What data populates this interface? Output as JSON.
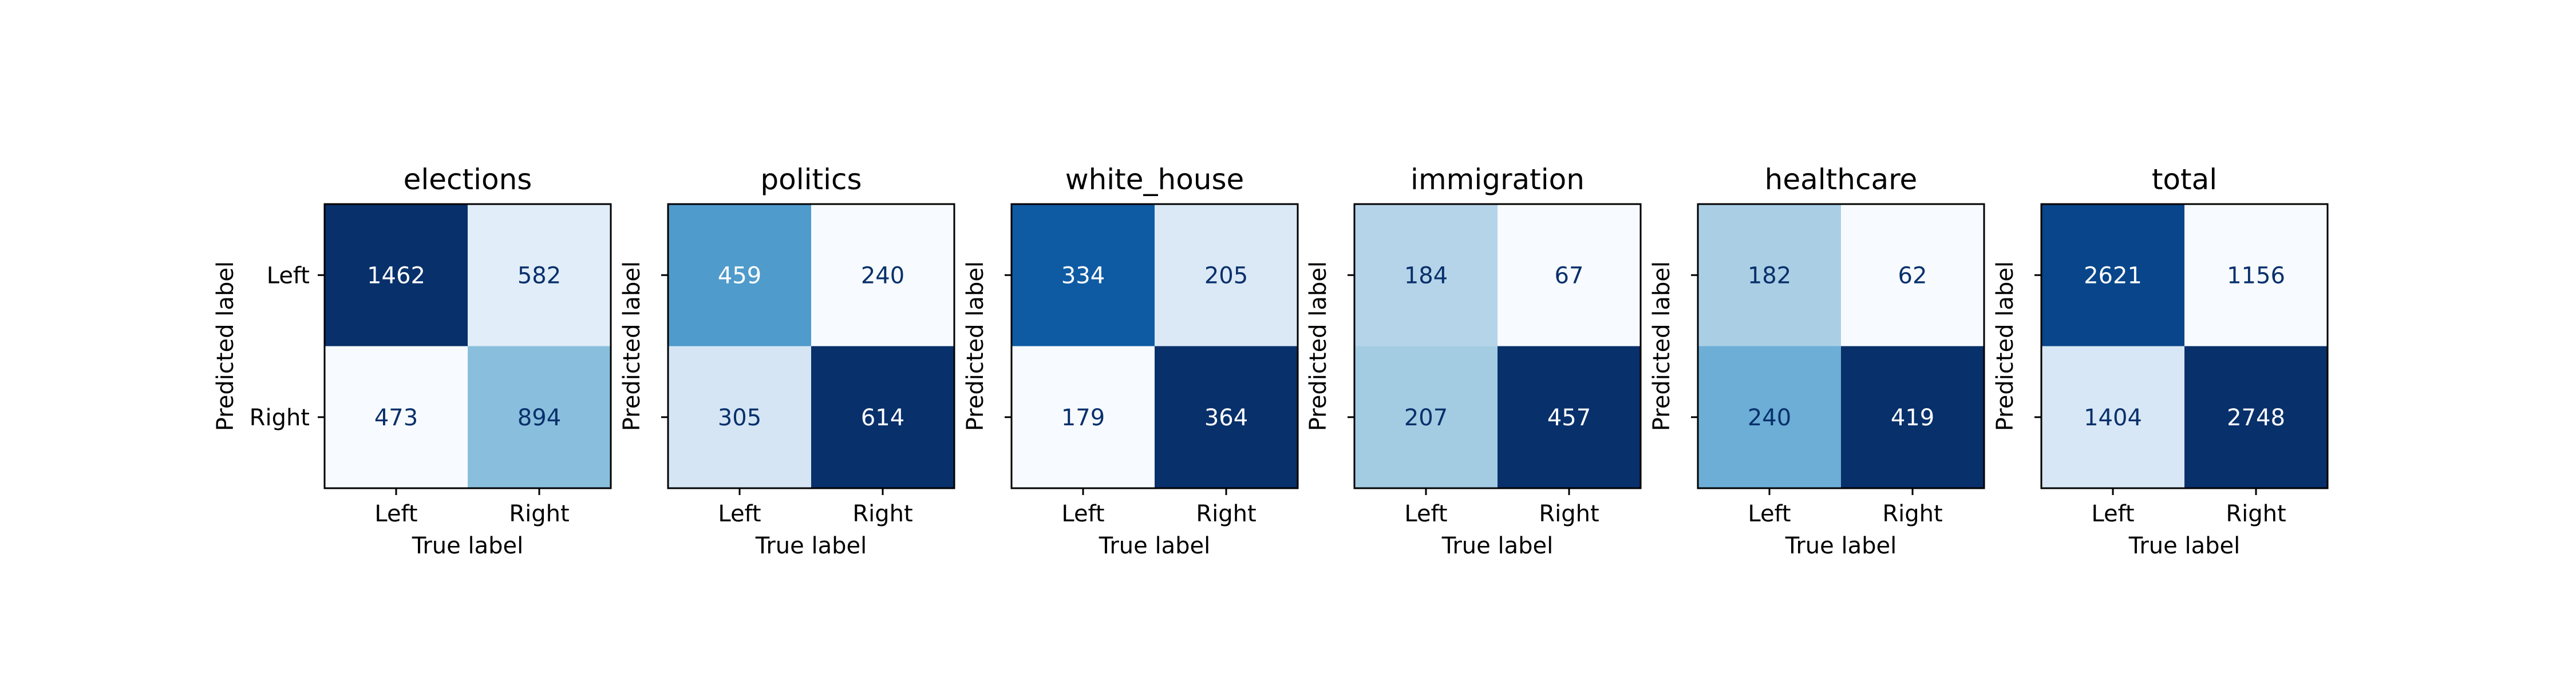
{
  "chart_data": [
    {
      "type": "heatmap",
      "title": "elections",
      "xlabel": "True label",
      "ylabel": "Predicted label",
      "x_categories": [
        "Left",
        "Right"
      ],
      "y_categories": [
        "Left",
        "Right"
      ],
      "matrix": [
        [
          1462,
          582
        ],
        [
          473,
          894
        ]
      ]
    },
    {
      "type": "heatmap",
      "title": "politics",
      "xlabel": "True label",
      "ylabel": "Predicted label",
      "x_categories": [
        "Left",
        "Right"
      ],
      "y_categories": [
        "Left",
        "Right"
      ],
      "matrix": [
        [
          459,
          240
        ],
        [
          305,
          614
        ]
      ]
    },
    {
      "type": "heatmap",
      "title": "white_house",
      "xlabel": "True label",
      "ylabel": "Predicted label",
      "x_categories": [
        "Left",
        "Right"
      ],
      "y_categories": [
        "Left",
        "Right"
      ],
      "matrix": [
        [
          334,
          205
        ],
        [
          179,
          364
        ]
      ]
    },
    {
      "type": "heatmap",
      "title": "immigration",
      "xlabel": "True label",
      "ylabel": "Predicted label",
      "x_categories": [
        "Left",
        "Right"
      ],
      "y_categories": [
        "Left",
        "Right"
      ],
      "matrix": [
        [
          184,
          67
        ],
        [
          207,
          457
        ]
      ]
    },
    {
      "type": "heatmap",
      "title": "healthcare",
      "xlabel": "True label",
      "ylabel": "Predicted label",
      "x_categories": [
        "Left",
        "Right"
      ],
      "y_categories": [
        "Left",
        "Right"
      ],
      "matrix": [
        [
          182,
          62
        ],
        [
          240,
          419
        ]
      ]
    },
    {
      "type": "heatmap",
      "title": "total",
      "xlabel": "True label",
      "ylabel": "Predicted label",
      "x_categories": [
        "Left",
        "Right"
      ],
      "y_categories": [
        "Left",
        "Right"
      ],
      "matrix": [
        [
          2621,
          1156
        ],
        [
          1404,
          2748
        ]
      ]
    }
  ],
  "colormap": {
    "name": "Blues",
    "low_color": "#f7fbff",
    "high_color": "#08306b",
    "text_on_light": "#08306b",
    "text_on_dark": "#ffffff"
  }
}
